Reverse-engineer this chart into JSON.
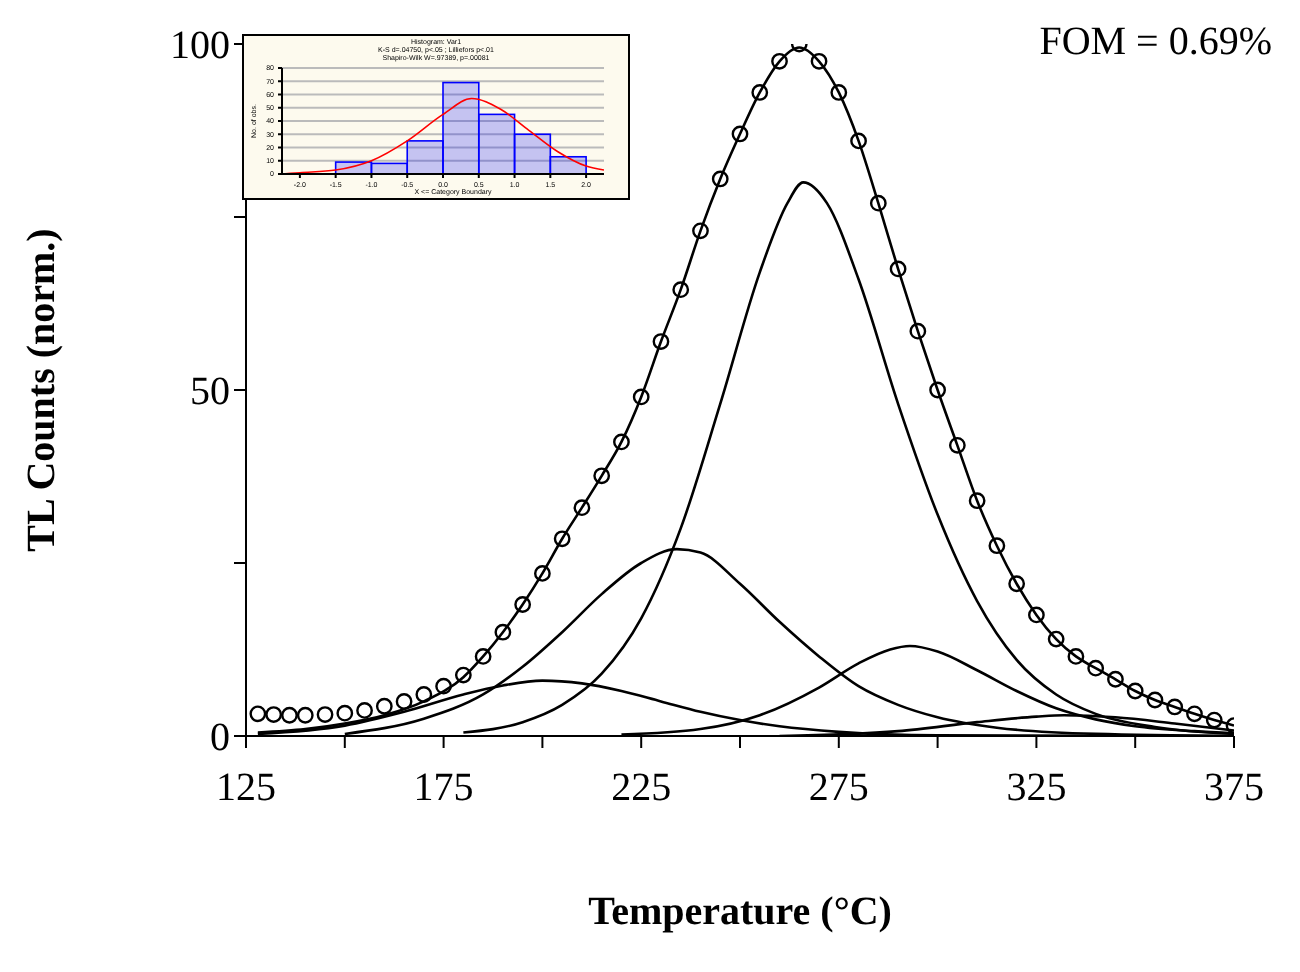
{
  "chart_data": [
    {
      "type": "line",
      "xlabel": "Temperature (°C)",
      "ylabel": "TL Counts (norm.)",
      "annotations": [
        "FOM = 0.69%"
      ],
      "xlim": [
        125,
        375
      ],
      "ylim": [
        0,
        100
      ],
      "xticks": [
        125,
        {
          "value": 150,
          "label": null
        },
        175,
        {
          "value": 200,
          "label": null
        },
        225,
        {
          "value": 250,
          "label": null
        },
        275,
        {
          "value": 300,
          "label": null
        },
        325,
        {
          "value": 350,
          "label": null
        },
        375
      ],
      "yticks": [
        0,
        {
          "value": 25,
          "label": null
        },
        50,
        {
          "value": 75,
          "label": null
        },
        100
      ],
      "grid": false,
      "legend": false,
      "series": [
        {
          "type": "scatter",
          "marker": "circle",
          "color": "#000000",
          "x": [
            128,
            132,
            136,
            140,
            145,
            150,
            155,
            160,
            165,
            170,
            175,
            180,
            185,
            190,
            195,
            200,
            205,
            210,
            215,
            220,
            225,
            230,
            235,
            240,
            245,
            250,
            255,
            260,
            265,
            270,
            275,
            280,
            285,
            290,
            295,
            300,
            305,
            310,
            315,
            320,
            325,
            330,
            335,
            340,
            345,
            350,
            355,
            360,
            365,
            370,
            375
          ],
          "values": [
            3.2,
            3.1,
            3.0,
            3.0,
            3.1,
            3.3,
            3.7,
            4.3,
            5,
            6,
            7.2,
            8.8,
            11.5,
            15,
            19,
            23.5,
            28.5,
            33,
            37.6,
            42.5,
            49,
            57,
            64.5,
            73,
            80.5,
            87,
            93,
            97.5,
            100,
            97.5,
            93,
            86,
            77,
            67.5,
            58.5,
            50,
            42,
            34,
            27.5,
            22,
            17.5,
            14,
            11.5,
            9.8,
            8.2,
            6.5,
            5.2,
            4.2,
            3.2,
            2.3,
            1.5
          ]
        },
        {
          "type": "line",
          "color": "#000000",
          "x": [
            128,
            140,
            150,
            160,
            170,
            180,
            185,
            190,
            195,
            200,
            205,
            210,
            215,
            220,
            225,
            230,
            235,
            240,
            245,
            250,
            255,
            260,
            265,
            270,
            275,
            280,
            285,
            290,
            295,
            300,
            305,
            310,
            315,
            320,
            325,
            330,
            335,
            340,
            345,
            350,
            355,
            360,
            365,
            370,
            375
          ],
          "values": [
            0.5,
            1,
            1.8,
            3,
            5,
            8.5,
            11.5,
            15,
            19,
            23.5,
            28.5,
            33,
            37.6,
            42.5,
            49,
            57,
            64.5,
            73,
            80.5,
            87,
            93,
            97.5,
            99.5,
            97.5,
            93,
            86,
            77,
            67.5,
            58.5,
            50,
            42,
            34,
            27.5,
            22,
            17.5,
            14,
            11.5,
            9.8,
            8.2,
            6.5,
            5.2,
            4.2,
            3.2,
            2.3,
            1.5
          ]
        },
        {
          "type": "line",
          "color": "#000000",
          "x": [
            128,
            150,
            165,
            180,
            190,
            200,
            210,
            220,
            230,
            240,
            250,
            260,
            275,
            300,
            375
          ],
          "values": [
            0.3,
            1.5,
            3.5,
            6,
            7.3,
            8,
            7.6,
            6.5,
            5,
            3.5,
            2.3,
            1.4,
            0.6,
            0.1,
            0
          ]
        },
        {
          "type": "line",
          "color": "#000000",
          "x": [
            150,
            170,
            185,
            195,
            205,
            215,
            225,
            234,
            240,
            250,
            260,
            270,
            280,
            290,
            300,
            315,
            340,
            375
          ],
          "values": [
            0.3,
            2.5,
            6,
            10,
            15,
            20.5,
            25,
            27,
            26.5,
            22,
            16.5,
            11.5,
            7.2,
            4.5,
            2.7,
            1.2,
            0.3,
            0
          ]
        },
        {
          "type": "line",
          "color": "#000000",
          "x": [
            180,
            195,
            205,
            215,
            225,
            235,
            245,
            255,
            262,
            266,
            272,
            280,
            290,
            300,
            310,
            320,
            330,
            340,
            355,
            375
          ],
          "values": [
            0.5,
            2,
            4.5,
            9,
            17,
            30,
            48,
            67,
            77,
            80,
            77,
            66,
            48,
            32,
            19.5,
            11,
            6,
            3.2,
            1.3,
            0.3
          ]
        },
        {
          "type": "line",
          "color": "#000000",
          "x": [
            220,
            240,
            255,
            270,
            280,
            288,
            293,
            300,
            310,
            320,
            330,
            340,
            350,
            365,
            375
          ],
          "values": [
            0.2,
            1,
            3,
            7,
            10.5,
            12.5,
            13,
            12.2,
            9.5,
            6.5,
            4,
            2.4,
            1.4,
            0.7,
            0.4
          ]
        },
        {
          "type": "line",
          "color": "#000000",
          "x": [
            260,
            290,
            310,
            325,
            332,
            345,
            360,
            375
          ],
          "values": [
            0,
            0.7,
            2,
            2.8,
            3,
            2.7,
            1.8,
            0.8
          ]
        }
      ]
    },
    {
      "type": "histogram",
      "title": "Histogram: Var1",
      "subtitle": "K-S d=.04750, p<.05 ; Lilliefors p<.01",
      "annotations": [
        "Shapiro-Wilk W=.97389, p=.00081"
      ],
      "xlabel": "X <= Category Boundary",
      "ylabel": "No. of obs.",
      "xlim": [
        -2.25,
        2.25
      ],
      "ylim": [
        0,
        80
      ],
      "xticks": [
        {
          "value": -2,
          "label": "-2.0"
        },
        -1.5,
        {
          "value": -1,
          "label": "-1.0"
        },
        -0.5,
        {
          "value": 0,
          "label": "0.0"
        },
        0.5,
        {
          "value": 1,
          "label": "1.0"
        },
        1.5,
        {
          "value": 2,
          "label": "2.0"
        }
      ],
      "yticks": [
        0,
        10,
        20,
        30,
        40,
        50,
        60,
        70,
        80
      ],
      "grid": "y",
      "legend": false,
      "bins": [
        -1.5,
        -1,
        -0.5,
        0,
        0.5,
        1,
        1.5,
        2
      ],
      "series": [
        {
          "type": "histogram",
          "color": "#0000ff",
          "values": [
            9,
            8,
            25,
            69,
            45,
            30,
            13
          ]
        },
        {
          "type": "line",
          "color": "#ff0000",
          "x": [
            -2.25,
            -2,
            -1.5,
            -1,
            -0.5,
            0,
            0.4,
            0.8,
            1.2,
            1.6,
            2,
            2.25
          ],
          "values": [
            0,
            1,
            3,
            10,
            25,
            45,
            57,
            49,
            33,
            17,
            6,
            3
          ]
        }
      ]
    }
  ]
}
